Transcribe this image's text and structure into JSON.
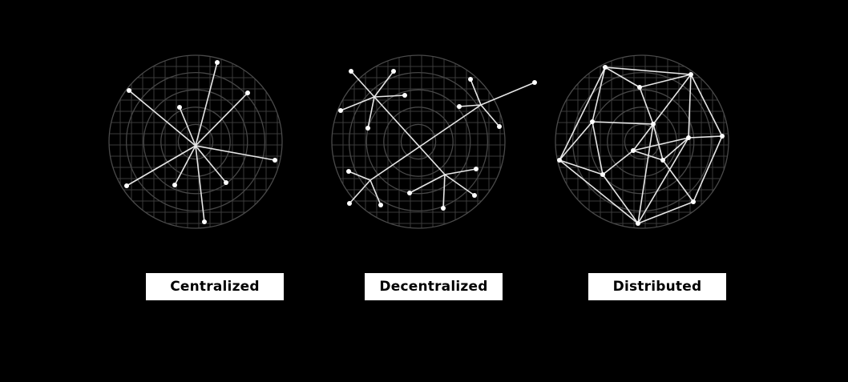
{
  "colors": {
    "background": "#000000",
    "grid": "#3a3a3a",
    "edge": "#e6e6e6",
    "node": "#ffffff",
    "label_bg": "#ffffff",
    "label_text": "#000000"
  },
  "diagrams": [
    {
      "label": "Centralized"
    },
    {
      "label": "Decentralized"
    },
    {
      "label": "Distributed"
    }
  ]
}
